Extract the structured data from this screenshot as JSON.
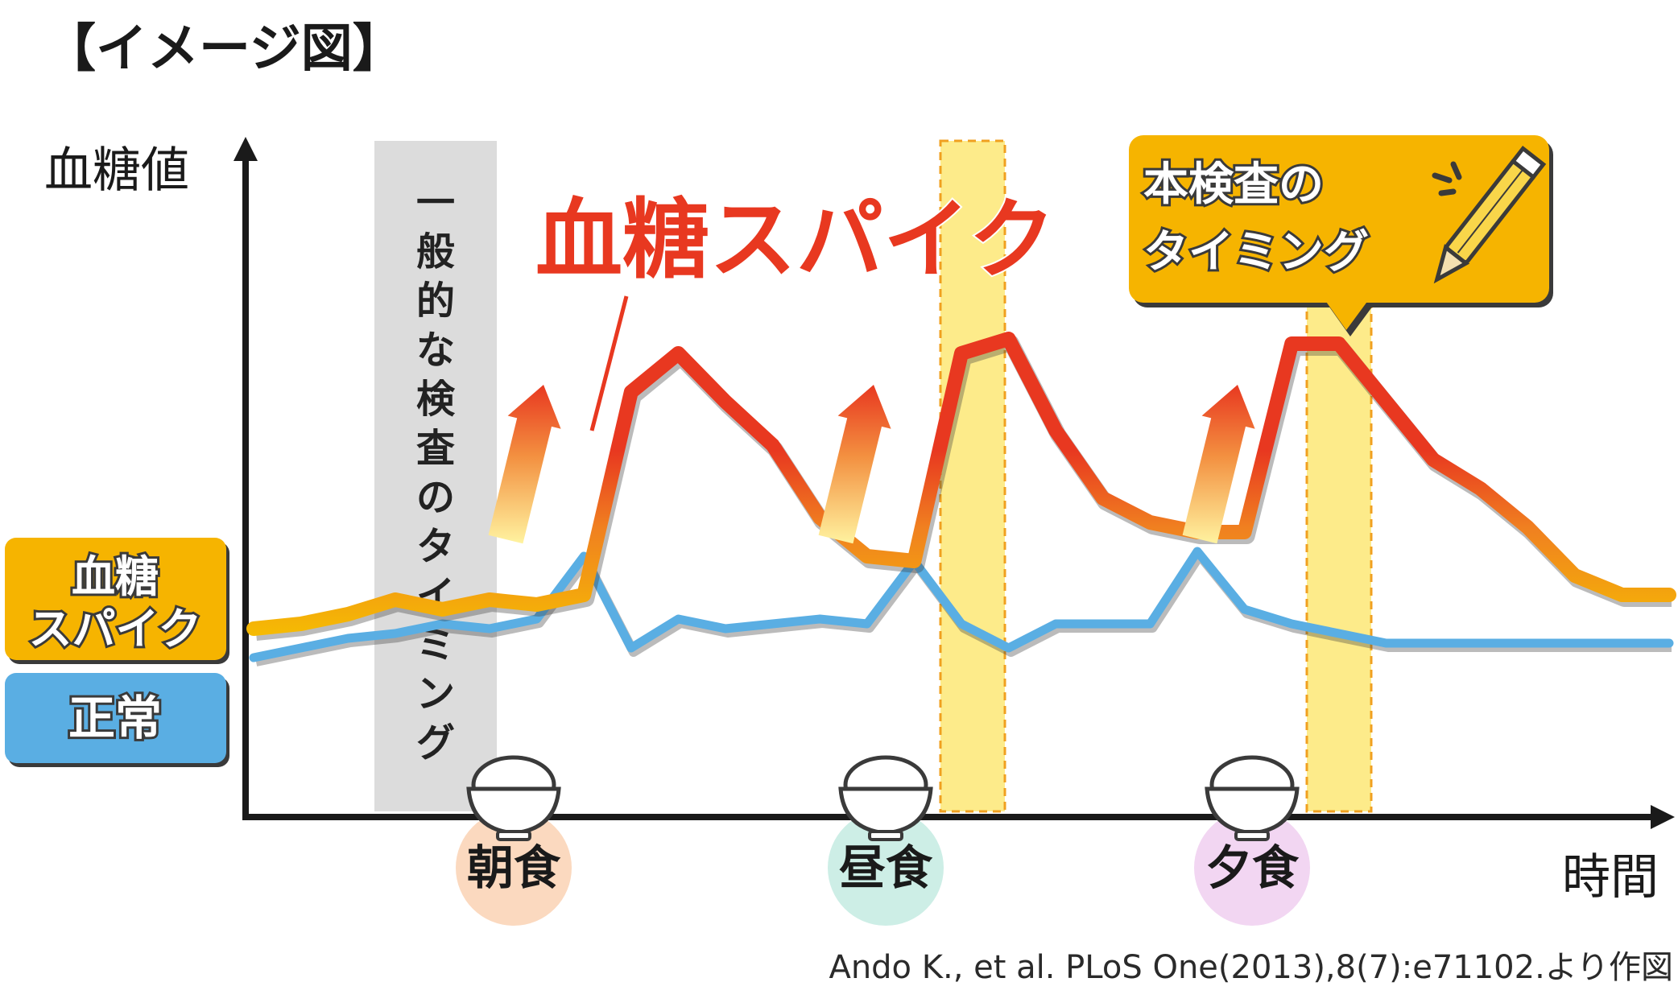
{
  "header": {
    "title": "【イメージ図】"
  },
  "chart_data": {
    "type": "line",
    "ylabel": "血糖値",
    "xlabel": "時間",
    "x": [
      0,
      1,
      2,
      3,
      4,
      5,
      6,
      7,
      8,
      9,
      10,
      11,
      12,
      13,
      14,
      15,
      16,
      17,
      18,
      19,
      20,
      21,
      22,
      23,
      24,
      25,
      26,
      27,
      28,
      29,
      30
    ],
    "series": [
      {
        "name": "血糖スパイク",
        "color": "#f6c000",
        "values": [
          39,
          40,
          42,
          45,
          43,
          45,
          44,
          46,
          88,
          96,
          86,
          77,
          62,
          54,
          53,
          96,
          99,
          80,
          66,
          61,
          59,
          59,
          98,
          98,
          86,
          74,
          68,
          60,
          50,
          46,
          46
        ]
      },
      {
        "name": "正常",
        "color": "#5aaee3",
        "values": [
          33,
          35,
          37,
          38,
          40,
          39,
          41,
          54,
          35,
          41,
          39,
          40,
          41,
          40,
          53,
          40,
          35,
          40,
          40,
          40,
          55,
          43,
          40,
          38,
          36,
          36,
          36,
          36,
          36,
          36,
          36
        ]
      }
    ],
    "meals": [
      {
        "label": "朝食",
        "color": "#fbd9bf"
      },
      {
        "label": "昼食",
        "color": "#cdeee6"
      },
      {
        "label": "夕食",
        "color": "#f2d6f2"
      }
    ],
    "annotations": {
      "spike_title": "血糖スパイク",
      "typical_test": "一般的な検査のタイミング",
      "this_test": [
        "本検査の",
        "タイミング"
      ]
    },
    "legend": [
      {
        "lines": [
          "血糖",
          "スパイク"
        ],
        "color": "#f6b400"
      },
      {
        "lines": [
          "正常"
        ],
        "color": "#5aaee3"
      }
    ],
    "source": "Ando K., et al. PLoS One(2013),8(7):e71102.より作図",
    "colors": {
      "spike": "#e83820",
      "spike_base": "#f6c000",
      "normal": "#5aaee3",
      "highlight": "#fdeb8a",
      "gray_band": "#dcdcdc",
      "callout": "#f6b400"
    }
  }
}
